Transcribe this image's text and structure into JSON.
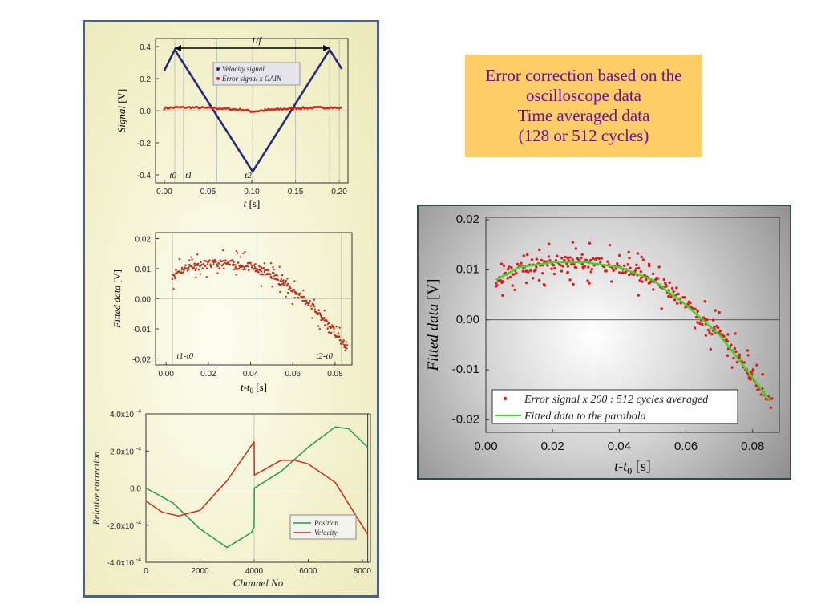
{
  "title_box": {
    "lines": [
      "Error correction based on the",
      "oscilloscope data",
      "Time averaged data",
      "(128 or 512 cycles)"
    ]
  },
  "chart_data": [
    {
      "type": "line",
      "xlabel_var": "t",
      "xlabel_unit": "[s]",
      "ylabel_var": "Signal",
      "ylabel_unit": "[V]",
      "xlim": [
        -0.01,
        0.21
      ],
      "ylim": [
        -0.45,
        0.45
      ],
      "xticks": [
        0.0,
        0.05,
        0.1,
        0.15,
        0.2
      ],
      "xtick_labels": [
        "0.00",
        "0.05",
        "0.10",
        "0.15",
        "0.20"
      ],
      "yticks": [
        0.4,
        0.2,
        0.0,
        -0.2,
        -0.4
      ],
      "ytick_labels": [
        "0.4",
        "0.2",
        "0.0",
        "-0.2",
        "-0.4"
      ],
      "series": [
        {
          "name": "Velocity signal",
          "color": "#2a2a7a",
          "x": [
            0.0,
            0.012,
            0.101,
            0.189,
            0.203
          ],
          "y": [
            0.25,
            0.38,
            -0.38,
            0.38,
            0.26
          ]
        },
        {
          "name": "Error signal x GAIN",
          "color": "#d6261c",
          "x": [
            0.0,
            0.012,
            0.03,
            0.06,
            0.09,
            0.101,
            0.12,
            0.15,
            0.189,
            0.203
          ],
          "y": [
            0.015,
            0.02,
            0.02,
            0.015,
            0.005,
            -0.005,
            0.005,
            0.015,
            0.02,
            0.015
          ]
        }
      ],
      "annotations": [
        "1/f",
        "t0",
        "t1",
        "t2"
      ]
    },
    {
      "type": "scatter",
      "xlabel_var": "t-t",
      "xlabel_sub": "0",
      "xlabel_unit": "[s]",
      "ylabel_var": "Fitted data",
      "ylabel_unit": "[V]",
      "xlim": [
        -0.005,
        0.088
      ],
      "ylim": [
        -0.022,
        0.022
      ],
      "xticks": [
        0.0,
        0.02,
        0.04,
        0.06,
        0.08
      ],
      "xtick_labels": [
        "0.00",
        "0.02",
        "0.04",
        "0.06",
        "0.08"
      ],
      "yticks": [
        0.02,
        0.01,
        0.0,
        -0.01,
        -0.02
      ],
      "ytick_labels": [
        "0.02",
        "0.01",
        "0.00",
        "-0.01",
        "-0.02"
      ],
      "annotations": [
        "t1-t0",
        "t2-t0"
      ]
    },
    {
      "type": "line",
      "xlabel": "Channel No",
      "ylabel": "Relative correction",
      "xlim": [
        0,
        8300
      ],
      "ylim": [
        -0.0004,
        0.0004
      ],
      "xticks": [
        0,
        2000,
        4000,
        6000,
        8000
      ],
      "xtick_labels": [
        "0",
        "2000",
        "4000",
        "6000",
        "8000"
      ],
      "yticks": [
        0.0004,
        0.0002,
        0.0,
        -0.0002,
        -0.0004
      ],
      "ytick_labels": [
        "4.0x10",
        "2.0x10",
        "0.0",
        "-2.0x10",
        "-4.0x10"
      ],
      "ytick_exp": [
        "-4",
        "-4",
        "",
        "-4",
        "-4"
      ],
      "series": [
        {
          "name": "Position",
          "color": "#1e9c4a",
          "x": [
            0,
            1000,
            2000,
            3000,
            3900,
            4000,
            4010,
            5000,
            6000,
            7000,
            7500,
            8200
          ],
          "y": [
            0.0,
            -8e-05,
            -0.00022,
            -0.00032,
            -0.00024,
            -0.00021,
            0.0,
            9e-05,
            0.00022,
            0.00033,
            0.00032,
            0.00022
          ]
        },
        {
          "name": "Velocity",
          "color": "#d6261c",
          "x": [
            0,
            600,
            1200,
            2000,
            3000,
            4000,
            4010,
            5000,
            5500,
            6000,
            7000,
            8200
          ],
          "y": [
            -7e-05,
            -0.00013,
            -0.00015,
            -0.00012,
            4e-05,
            0.00025,
            7e-05,
            0.00015,
            0.00015,
            0.00013,
            3e-05,
            -0.00025
          ]
        }
      ]
    },
    {
      "type": "scatter",
      "xlabel_var": "t-t",
      "xlabel_sub": "0",
      "xlabel_unit": "[s]",
      "ylabel_var": "Fitted data",
      "ylabel_unit": "[V]",
      "xlim": [
        0.0,
        0.088
      ],
      "ylim": [
        -0.0225,
        0.0205
      ],
      "xticks": [
        0.0,
        0.02,
        0.04,
        0.06,
        0.08
      ],
      "xtick_labels": [
        "0.00",
        "0.02",
        "0.04",
        "0.06",
        "0.08"
      ],
      "yticks": [
        0.02,
        0.01,
        0.0,
        -0.01,
        -0.02
      ],
      "ytick_labels": [
        "0.02",
        "0.01",
        "0.00",
        "-0.01",
        "-0.02"
      ],
      "series": [
        {
          "name": "Error signal x 200 : 512 cycles averaged",
          "color": "#e01b1b",
          "marker": "dot"
        },
        {
          "name": "Fitted data to the parabola",
          "color": "#33dd22",
          "marker": "line"
        }
      ],
      "fit_curve": {
        "x": [
          0.003,
          0.01,
          0.02,
          0.03,
          0.04,
          0.05,
          0.06,
          0.07,
          0.08,
          0.086
        ],
        "y": [
          0.008,
          0.0105,
          0.0115,
          0.0115,
          0.0105,
          0.008,
          0.003,
          -0.003,
          -0.0115,
          -0.017
        ]
      }
    }
  ]
}
